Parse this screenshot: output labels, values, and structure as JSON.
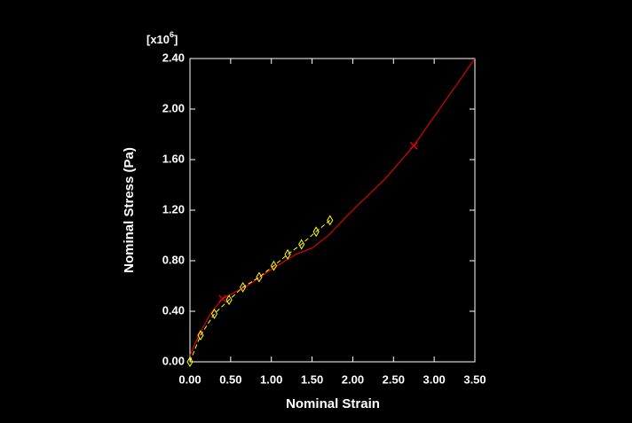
{
  "chart_data": {
    "type": "line",
    "xlabel": "Nominal Strain",
    "ylabel": "Nominal Stress (Pa)",
    "y_multiplier": {
      "prefix": "[x10",
      "exponent": "6",
      "suffix": "]"
    },
    "xlim": [
      0,
      3.5
    ],
    "ylim": [
      0,
      2.4
    ],
    "xticks": [
      {
        "value": 0,
        "label": "0.00"
      },
      {
        "value": 0.5,
        "label": "0.50"
      },
      {
        "value": 1,
        "label": "1.00"
      },
      {
        "value": 1.5,
        "label": "1.50"
      },
      {
        "value": 2,
        "label": "2.00"
      },
      {
        "value": 2.5,
        "label": "2.50"
      },
      {
        "value": 3,
        "label": "3.00"
      },
      {
        "value": 3.5,
        "label": "3.50"
      }
    ],
    "yticks": [
      {
        "value": 0,
        "label": "0.00"
      },
      {
        "value": 0.4,
        "label": "0.40"
      },
      {
        "value": 0.8,
        "label": "0.80"
      },
      {
        "value": 1.2,
        "label": "1.20"
      },
      {
        "value": 1.6,
        "label": "1.60"
      },
      {
        "value": 2,
        "label": "2.00"
      },
      {
        "value": 2.4,
        "label": "2.40"
      }
    ],
    "series": [
      {
        "color": "#ff0000",
        "marker": "x",
        "dashed": false,
        "x": [
          0,
          0.1,
          0.25,
          0.4,
          0.7,
          1.0,
          1.3,
          1.5,
          1.7,
          2.0,
          2.4,
          2.75,
          3.5
        ],
        "values": [
          0.05,
          0.2,
          0.38,
          0.5,
          0.6,
          0.73,
          0.85,
          0.9,
          1.0,
          1.2,
          1.45,
          1.71,
          2.4
        ],
        "marker_at": [
          3,
          11
        ]
      },
      {
        "color": "#ffff00",
        "marker": "diamond",
        "dashed": true,
        "x": [
          0,
          0.13,
          0.3,
          0.48,
          0.65,
          0.85,
          1.03,
          1.2,
          1.37,
          1.55,
          1.72
        ],
        "values": [
          0,
          0.21,
          0.38,
          0.49,
          0.59,
          0.67,
          0.76,
          0.85,
          0.93,
          1.03,
          1.12
        ]
      }
    ]
  }
}
